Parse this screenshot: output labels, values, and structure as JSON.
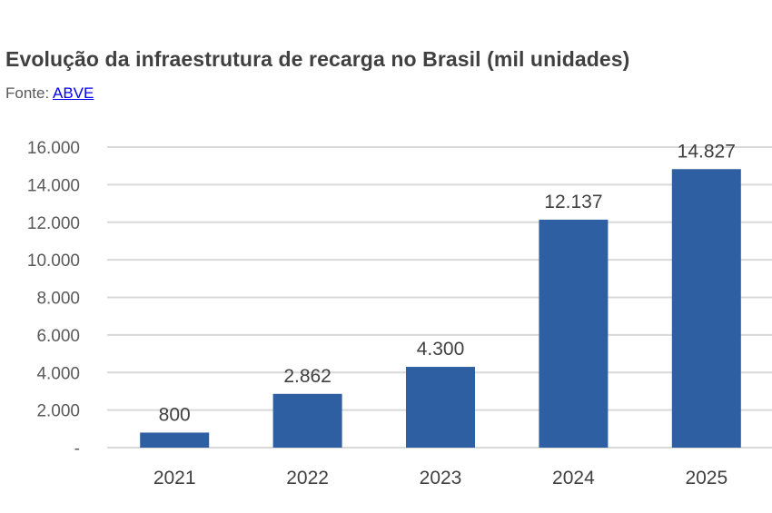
{
  "chart_data": {
    "type": "bar",
    "title": "Evolução da infraestrutura de recarga no Brasil (mil unidades)",
    "source_label": "Fonte:",
    "source_link": "ABVE",
    "categories": [
      "2021",
      "2022",
      "2023",
      "2024",
      "2025"
    ],
    "values": [
      800,
      2862,
      4300,
      12137,
      14827
    ],
    "data_labels": [
      "800",
      "2.862",
      "4.300",
      "12.137",
      "14.827"
    ],
    "yticks": [
      0,
      2000,
      4000,
      6000,
      8000,
      10000,
      12000,
      14000,
      16000
    ],
    "ytick_labels": [
      "-",
      "2.000",
      "4.000",
      "6.000",
      "8.000",
      "10.000",
      "12.000",
      "14.000",
      "16.000"
    ],
    "ylim": [
      0,
      16000
    ],
    "xlabel": "",
    "ylabel": "",
    "grid": true,
    "bar_color": "#2e5fa3"
  }
}
